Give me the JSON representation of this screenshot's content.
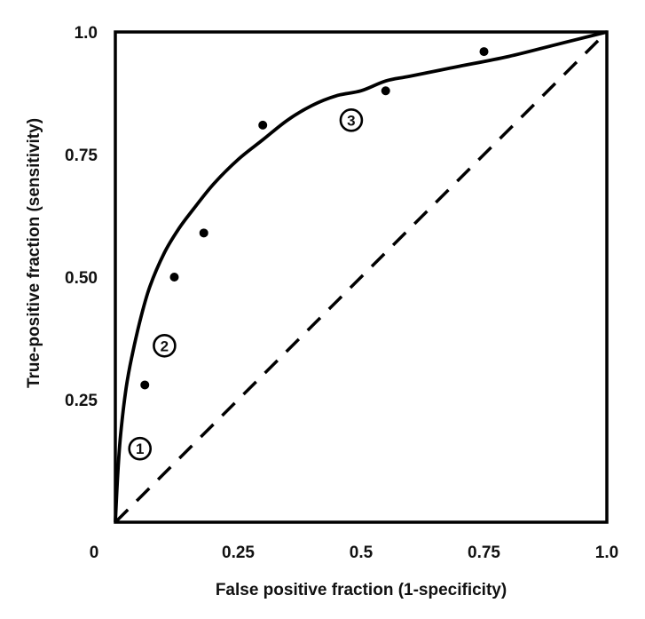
{
  "chart_data": {
    "type": "scatter",
    "title": "",
    "xlabel": "False positive fraction (1-specificity)",
    "ylabel": "True-positive fraction (sensitivity)",
    "xlim": [
      0,
      1.0
    ],
    "ylim": [
      0,
      1.0
    ],
    "x_ticks": [
      {
        "value": 0,
        "label": "0"
      },
      {
        "value": 0.25,
        "label": "0.25"
      },
      {
        "value": 0.5,
        "label": "0.5"
      },
      {
        "value": 0.75,
        "label": "0.75"
      },
      {
        "value": 1.0,
        "label": "1.0"
      }
    ],
    "y_ticks": [
      {
        "value": 0.25,
        "label": "0.25"
      },
      {
        "value": 0.5,
        "label": "0.50"
      },
      {
        "value": 0.75,
        "label": "0.75"
      },
      {
        "value": 1.0,
        "label": "1.0"
      }
    ],
    "grid": false,
    "legend": "none",
    "points": [
      {
        "x": 0.06,
        "y": 0.28
      },
      {
        "x": 0.12,
        "y": 0.5
      },
      {
        "x": 0.18,
        "y": 0.59
      },
      {
        "x": 0.3,
        "y": 0.81
      },
      {
        "x": 0.55,
        "y": 0.88
      },
      {
        "x": 0.75,
        "y": 0.96
      }
    ],
    "curve": {
      "x": [
        0,
        0.005,
        0.01,
        0.02,
        0.03,
        0.05,
        0.07,
        0.1,
        0.13,
        0.16,
        0.2,
        0.25,
        0.3,
        0.35,
        0.4,
        0.45,
        0.5,
        0.55,
        0.6,
        0.7,
        0.8,
        0.9,
        1.0
      ],
      "y": [
        0,
        0.1,
        0.17,
        0.26,
        0.32,
        0.41,
        0.48,
        0.55,
        0.6,
        0.64,
        0.69,
        0.74,
        0.78,
        0.82,
        0.85,
        0.87,
        0.88,
        0.9,
        0.91,
        0.93,
        0.95,
        0.975,
        1.0
      ]
    },
    "diagonal": {
      "x": [
        0,
        1.0
      ],
      "y": [
        0,
        1.0
      ],
      "style": "dashed"
    },
    "annotations": [
      {
        "text": "1",
        "x": 0.05,
        "y": 0.15
      },
      {
        "text": "2",
        "x": 0.1,
        "y": 0.36
      },
      {
        "text": "3",
        "x": 0.48,
        "y": 0.82
      }
    ],
    "colors": {
      "line": "#000000",
      "point": "#000000",
      "background": "#ffffff"
    }
  }
}
